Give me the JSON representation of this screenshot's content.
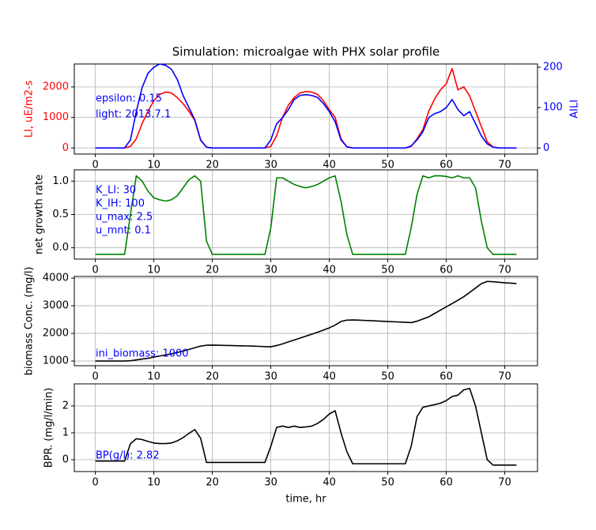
{
  "chart_data": [
    {
      "type": "line",
      "title": "Simulation: microalgae with PHX solar profile",
      "x": [
        0,
        1,
        2,
        3,
        4,
        5,
        6,
        7,
        8,
        9,
        10,
        11,
        12,
        13,
        14,
        15,
        16,
        17,
        18,
        19,
        20,
        21,
        22,
        23,
        24,
        25,
        26,
        27,
        28,
        29,
        30,
        31,
        32,
        33,
        34,
        35,
        36,
        37,
        38,
        39,
        40,
        41,
        42,
        43,
        44,
        45,
        46,
        47,
        48,
        49,
        50,
        51,
        52,
        53,
        54,
        55,
        56,
        57,
        58,
        59,
        60,
        61,
        62,
        63,
        64,
        65,
        66,
        67,
        68,
        69,
        70,
        71,
        72
      ],
      "xlim": [
        -3.6,
        75.6
      ],
      "xticks": [
        0,
        10,
        20,
        30,
        40,
        50,
        60,
        70
      ],
      "ylim": [
        -200,
        2750
      ],
      "yticks": [
        0,
        1000,
        2000
      ],
      "ylabel": "LI, uE/m2-s",
      "ylabel_color": "#ff0000",
      "y2lim": [
        -15,
        208
      ],
      "y2ticks": [
        0,
        100,
        200
      ],
      "y2label": "AILI",
      "y2label_color": "#0000ff",
      "grid": true,
      "annotations": [
        "epsilon: 0.15",
        "light: 2013.7.1"
      ],
      "annotation_color": "#0000ff",
      "series": [
        {
          "color": "#ff0000",
          "values": [
            0,
            0,
            0,
            0,
            0,
            0,
            50,
            300,
            800,
            1200,
            1550,
            1750,
            1830,
            1800,
            1650,
            1450,
            1200,
            900,
            250,
            20,
            0,
            0,
            0,
            0,
            0,
            0,
            0,
            0,
            0,
            0,
            50,
            400,
            1000,
            1400,
            1650,
            1800,
            1850,
            1830,
            1750,
            1550,
            1250,
            1000,
            300,
            30,
            0,
            0,
            0,
            0,
            0,
            0,
            0,
            0,
            0,
            0,
            50,
            300,
            600,
            1200,
            1600,
            1900,
            2100,
            2600,
            1900,
            2000,
            1700,
            1200,
            700,
            200,
            30,
            0,
            0,
            0,
            0
          ]
        },
        {
          "color": "#0000ff",
          "axis": "y2",
          "values": [
            0,
            0,
            0,
            0,
            0,
            0,
            20,
            90,
            150,
            185,
            200,
            208,
            205,
            195,
            170,
            130,
            100,
            70,
            20,
            2,
            0,
            0,
            0,
            0,
            0,
            0,
            0,
            0,
            0,
            0,
            20,
            60,
            75,
            95,
            120,
            130,
            132,
            130,
            125,
            110,
            90,
            65,
            20,
            3,
            0,
            0,
            0,
            0,
            0,
            0,
            0,
            0,
            0,
            0,
            5,
            20,
            40,
            75,
            85,
            90,
            100,
            120,
            95,
            80,
            90,
            60,
            30,
            10,
            2,
            0,
            0,
            0,
            0
          ]
        }
      ]
    },
    {
      "type": "line",
      "x": [
        0,
        1,
        2,
        3,
        4,
        5,
        6,
        7,
        8,
        9,
        10,
        11,
        12,
        13,
        14,
        15,
        16,
        17,
        18,
        19,
        20,
        21,
        22,
        23,
        24,
        25,
        26,
        27,
        28,
        29,
        30,
        31,
        32,
        33,
        34,
        35,
        36,
        37,
        38,
        39,
        40,
        41,
        42,
        43,
        44,
        45,
        46,
        47,
        48,
        49,
        50,
        51,
        52,
        53,
        54,
        55,
        56,
        57,
        58,
        59,
        60,
        61,
        62,
        63,
        64,
        65,
        66,
        67,
        68,
        69,
        70,
        71,
        72
      ],
      "xlim": [
        -3.6,
        75.6
      ],
      "xticks": [
        0,
        10,
        20,
        30,
        40,
        50,
        60,
        70
      ],
      "ylim": [
        -0.17,
        1.17
      ],
      "yticks": [
        {
          "value": 0,
          "label": "0.0"
        },
        0.5,
        {
          "value": 1,
          "label": "1.0"
        }
      ],
      "ylabel": "net growth rate",
      "grid": true,
      "annotations": [
        "K_LI: 30",
        "K_IH: 100",
        "u_max: 2.5",
        "u_mnt: 0.1"
      ],
      "annotation_color": "#0000ff",
      "series": [
        {
          "color": "#008000",
          "values": [
            -0.1,
            -0.1,
            -0.1,
            -0.1,
            -0.1,
            -0.1,
            0.5,
            1.08,
            1.0,
            0.85,
            0.75,
            0.72,
            0.7,
            0.72,
            0.78,
            0.9,
            1.02,
            1.08,
            1.0,
            0.1,
            -0.1,
            -0.1,
            -0.1,
            -0.1,
            -0.1,
            -0.1,
            -0.1,
            -0.1,
            -0.1,
            -0.1,
            0.3,
            1.05,
            1.05,
            1.0,
            0.95,
            0.92,
            0.9,
            0.92,
            0.95,
            1.0,
            1.05,
            1.08,
            0.7,
            0.2,
            -0.1,
            -0.1,
            -0.1,
            -0.1,
            -0.1,
            -0.1,
            -0.1,
            -0.1,
            -0.1,
            -0.1,
            0.3,
            0.8,
            1.08,
            1.05,
            1.08,
            1.08,
            1.07,
            1.05,
            1.08,
            1.05,
            1.05,
            0.9,
            0.4,
            0.0,
            -0.1,
            -0.1,
            -0.1,
            -0.1,
            -0.1
          ]
        }
      ]
    },
    {
      "type": "line",
      "x": [
        0,
        1,
        2,
        3,
        4,
        5,
        6,
        7,
        8,
        9,
        10,
        11,
        12,
        13,
        14,
        15,
        16,
        17,
        18,
        19,
        20,
        21,
        22,
        23,
        24,
        25,
        26,
        27,
        28,
        29,
        30,
        31,
        32,
        33,
        34,
        35,
        36,
        37,
        38,
        39,
        40,
        41,
        42,
        43,
        44,
        45,
        46,
        47,
        48,
        49,
        50,
        51,
        52,
        53,
        54,
        55,
        56,
        57,
        58,
        59,
        60,
        61,
        62,
        63,
        64,
        65,
        66,
        67,
        68,
        69,
        70,
        71,
        72
      ],
      "xlim": [
        -3.6,
        75.6
      ],
      "xticks": [
        0,
        10,
        20,
        30,
        40,
        50,
        60,
        70
      ],
      "ylim": [
        830,
        4060
      ],
      "yticks": [
        1000,
        2000,
        3000,
        4000
      ],
      "ylabel": "biomass Conc. (mg/l)",
      "grid": true,
      "annotations": [
        "ini_biomass: 1000"
      ],
      "annotation_color": "#0000ff",
      "series": [
        {
          "color": "#000000",
          "values": [
            1000,
            1000,
            1000,
            1000,
            1000,
            1000,
            1010,
            1040,
            1070,
            1100,
            1140,
            1180,
            1220,
            1260,
            1310,
            1360,
            1420,
            1480,
            1540,
            1570,
            1575,
            1570,
            1565,
            1560,
            1555,
            1550,
            1545,
            1540,
            1530,
            1520,
            1515,
            1560,
            1620,
            1690,
            1760,
            1830,
            1900,
            1970,
            2040,
            2120,
            2200,
            2300,
            2430,
            2480,
            2485,
            2480,
            2470,
            2460,
            2450,
            2440,
            2430,
            2420,
            2410,
            2400,
            2390,
            2440,
            2520,
            2600,
            2720,
            2840,
            2960,
            3080,
            3200,
            3330,
            3480,
            3640,
            3800,
            3880,
            3870,
            3850,
            3830,
            3820,
            3800
          ]
        }
      ]
    },
    {
      "type": "line",
      "xlabel": "time, hr",
      "x": [
        0,
        1,
        2,
        3,
        4,
        5,
        6,
        7,
        8,
        9,
        10,
        11,
        12,
        13,
        14,
        15,
        16,
        17,
        18,
        19,
        20,
        21,
        22,
        23,
        24,
        25,
        26,
        27,
        28,
        29,
        30,
        31,
        32,
        33,
        34,
        35,
        36,
        37,
        38,
        39,
        40,
        41,
        42,
        43,
        44,
        45,
        46,
        47,
        48,
        49,
        50,
        51,
        52,
        53,
        54,
        55,
        56,
        57,
        58,
        59,
        60,
        61,
        62,
        63,
        64,
        65,
        66,
        67,
        68,
        69,
        70,
        71,
        72
      ],
      "xlim": [
        -3.6,
        75.6
      ],
      "xticks": [
        0,
        10,
        20,
        30,
        40,
        50,
        60,
        70
      ],
      "ylim": [
        -0.44,
        2.82
      ],
      "yticks": [
        0,
        1,
        2
      ],
      "ylabel": "BPR. (mg/l/min)",
      "grid": true,
      "annotations": [
        "BP(g/l): 2.82"
      ],
      "annotation_color": "#0000ff",
      "series": [
        {
          "color": "#000000",
          "values": [
            -0.05,
            -0.05,
            -0.05,
            -0.05,
            -0.05,
            -0.05,
            0.6,
            0.78,
            0.75,
            0.68,
            0.62,
            0.6,
            0.6,
            0.62,
            0.7,
            0.82,
            0.98,
            1.12,
            0.8,
            -0.1,
            -0.1,
            -0.1,
            -0.1,
            -0.1,
            -0.1,
            -0.1,
            -0.1,
            -0.1,
            -0.1,
            -0.1,
            0.5,
            1.2,
            1.25,
            1.2,
            1.25,
            1.2,
            1.22,
            1.25,
            1.35,
            1.5,
            1.7,
            1.82,
            1.0,
            0.3,
            -0.15,
            -0.15,
            -0.15,
            -0.15,
            -0.15,
            -0.15,
            -0.15,
            -0.15,
            -0.15,
            -0.15,
            0.5,
            1.6,
            1.95,
            2.0,
            2.05,
            2.1,
            2.2,
            2.35,
            2.4,
            2.6,
            2.65,
            2.0,
            1.0,
            0.0,
            -0.2,
            -0.2,
            -0.2,
            -0.2,
            -0.2
          ]
        }
      ]
    }
  ]
}
